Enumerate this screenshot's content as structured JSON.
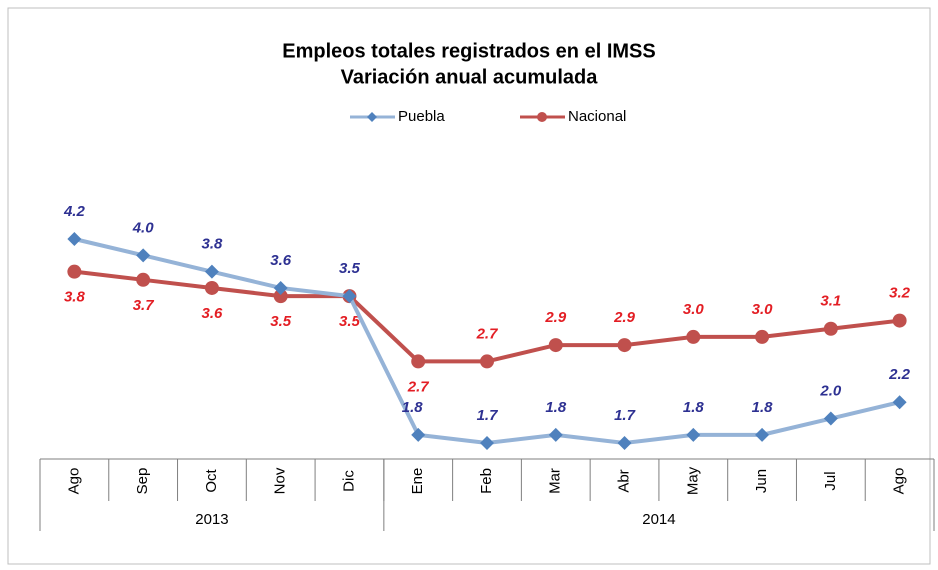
{
  "chart_data": {
    "type": "line",
    "title": "Empleos totales registrados en el IMSS",
    "subtitle": "Variación anual acumulada",
    "groups": [
      {
        "label": "2013",
        "categories": [
          "Ago",
          "Sep",
          "Oct",
          "Nov",
          "Dic"
        ]
      },
      {
        "label": "2014",
        "categories": [
          "Ene",
          "Feb",
          "Mar",
          "Abr",
          "May",
          "Jun",
          "Jul",
          "Ago"
        ]
      }
    ],
    "series": [
      {
        "name": "Puebla",
        "color": "#95b3d7",
        "marker_color": "#4f81bd",
        "label_color": "#2e3192",
        "marker": "diamond",
        "values": [
          4.2,
          4.0,
          3.8,
          3.6,
          3.5,
          1.8,
          1.7,
          1.8,
          1.7,
          1.8,
          1.8,
          2.0,
          2.2
        ],
        "value_labels": [
          "4.2",
          "4.0",
          "3.8",
          "3.6",
          "3.5",
          "1.8",
          "1.7",
          "1.8",
          "1.7",
          "1.8",
          "1.8",
          "2.0",
          "2.2"
        ]
      },
      {
        "name": "Nacional",
        "color": "#c0504d",
        "marker_color": "#c0504d",
        "label_color": "#e31e24",
        "marker": "circle",
        "values": [
          3.8,
          3.7,
          3.6,
          3.5,
          3.5,
          2.7,
          2.7,
          2.9,
          2.9,
          3.0,
          3.0,
          3.1,
          3.2
        ],
        "value_labels": [
          "3.8",
          "3.7",
          "3.6",
          "3.5",
          "3.5",
          "2.7",
          "2.7",
          "2.9",
          "2.9",
          "3.0",
          "3.0",
          "3.1",
          "3.2"
        ]
      }
    ]
  }
}
